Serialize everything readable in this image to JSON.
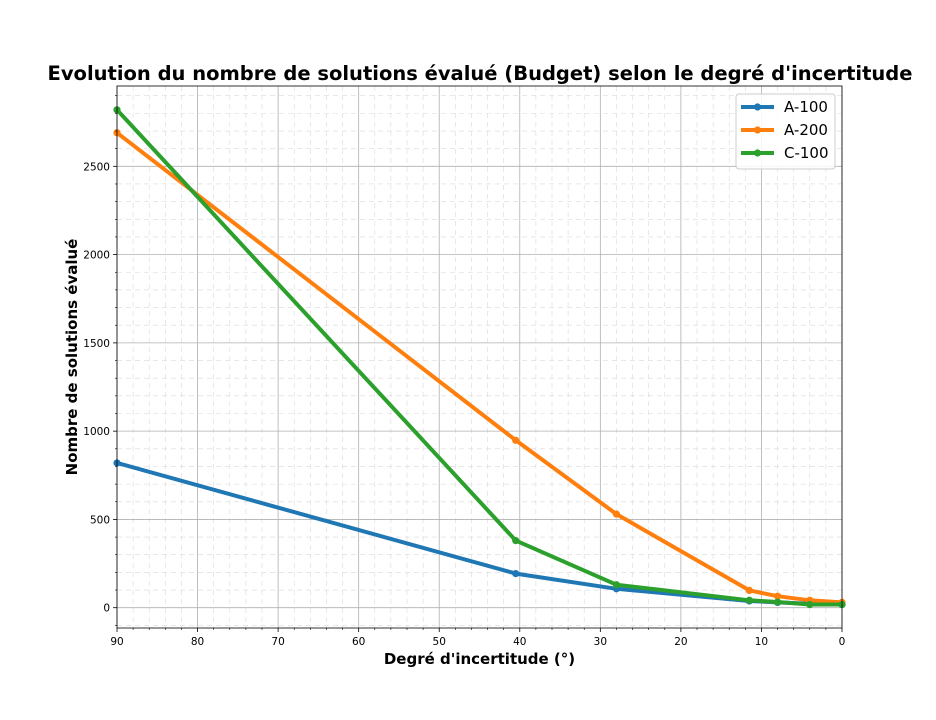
{
  "chart_data": {
    "type": "line",
    "title": "Evolution du nombre de solutions évalué (Budget) selon  le degré d'incertitude",
    "xlabel": "Degré d'incertitude (°)",
    "ylabel": "Nombre de solutions évalué",
    "xlim": [
      90,
      0
    ],
    "ylim": [
      -115,
      2955
    ],
    "x_reversed": true,
    "x_ticks": [
      90,
      80,
      70,
      60,
      50,
      40,
      30,
      20,
      10,
      0
    ],
    "y_ticks": [
      0,
      500,
      1000,
      1500,
      2000,
      2500
    ],
    "grid": true,
    "legend_position": "upper-right",
    "series": [
      {
        "name": "A-100",
        "color": "#1f77b4",
        "points": [
          [
            90,
            820
          ],
          [
            40.5,
            193
          ],
          [
            28,
            107
          ],
          [
            11.5,
            38
          ],
          [
            8,
            30
          ],
          [
            4,
            22
          ],
          [
            0,
            18
          ]
        ]
      },
      {
        "name": "A-200",
        "color": "#ff7f0e",
        "points": [
          [
            90,
            2690
          ],
          [
            40.5,
            948
          ],
          [
            28,
            530
          ],
          [
            11.5,
            98
          ],
          [
            8,
            65
          ],
          [
            4,
            42
          ],
          [
            0,
            30
          ]
        ]
      },
      {
        "name": "C-100",
        "color": "#2ca02c",
        "points": [
          [
            90,
            2820
          ],
          [
            40.5,
            380
          ],
          [
            28,
            130
          ],
          [
            11.5,
            42
          ],
          [
            8,
            32
          ],
          [
            4,
            18
          ],
          [
            0,
            18
          ]
        ]
      }
    ]
  }
}
